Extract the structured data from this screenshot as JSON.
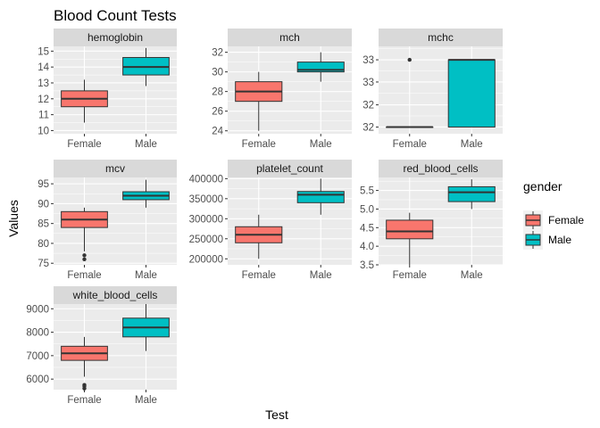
{
  "chart_data": {
    "type": "boxplot",
    "title": "Blood Count Tests",
    "xlabel": "Test",
    "ylabel": "Values",
    "categories": [
      "Female",
      "Male"
    ],
    "legend": {
      "title": "gender",
      "placement": "right",
      "items": [
        {
          "label": "Female",
          "color": "#F8766D"
        },
        {
          "label": "Male",
          "color": "#00BFC4"
        }
      ]
    },
    "grid": true,
    "panels": [
      {
        "name": "hemoglobin",
        "ylim": [
          9.8,
          15.3
        ],
        "yticks": [
          10,
          11,
          12,
          13,
          14,
          15
        ],
        "ytick_labels": [
          "10",
          "11",
          "12",
          "13",
          "14",
          "15"
        ],
        "boxes": [
          {
            "group": "Female",
            "min": 10.5,
            "q1": 11.5,
            "median": 12.0,
            "q3": 12.5,
            "max": 13.2,
            "outliers": []
          },
          {
            "group": "Male",
            "min": 12.8,
            "q1": 13.5,
            "median": 14.0,
            "q3": 14.6,
            "max": 15.2,
            "outliers": []
          }
        ]
      },
      {
        "name": "mch",
        "ylim": [
          23.7,
          32.6
        ],
        "yticks": [
          24,
          26,
          28,
          30,
          32
        ],
        "ytick_labels": [
          "24",
          "26",
          "28",
          "30",
          "32"
        ],
        "boxes": [
          {
            "group": "Female",
            "min": 24.0,
            "q1": 27.0,
            "median": 28.0,
            "q3": 29.0,
            "max": 30.0,
            "outliers": []
          },
          {
            "group": "Male",
            "min": 29.0,
            "q1": 30.0,
            "median": 30.2,
            "q3": 31.0,
            "max": 32.0,
            "outliers": []
          }
        ]
      },
      {
        "name": "mchc",
        "ylim": [
          31.9,
          33.2
        ],
        "yticks": [
          32,
          32.33,
          32.67,
          33
        ],
        "ytick_labels": [
          "32",
          "32",
          "33",
          "33"
        ],
        "boxes": [
          {
            "group": "Female",
            "min": 32.0,
            "q1": 32.0,
            "median": 32.0,
            "q3": 32.0,
            "max": 32.0,
            "outliers": [
              33.0
            ]
          },
          {
            "group": "Male",
            "min": 32.0,
            "q1": 32.0,
            "median": 33.0,
            "q3": 33.0,
            "max": 33.0,
            "outliers": []
          }
        ]
      },
      {
        "name": "mcv",
        "ylim": [
          74.6,
          96.6
        ],
        "yticks": [
          75,
          80,
          85,
          90,
          95
        ],
        "ytick_labels": [
          "75",
          "80",
          "85",
          "90",
          "95"
        ],
        "boxes": [
          {
            "group": "Female",
            "min": 78.0,
            "q1": 84.0,
            "median": 86.0,
            "q3": 88.0,
            "max": 89.0,
            "outliers": [
              76.0,
              77.0
            ]
          },
          {
            "group": "Male",
            "min": 89.0,
            "q1": 91.0,
            "median": 92.0,
            "q3": 93.0,
            "max": 96.0,
            "outliers": []
          }
        ]
      },
      {
        "name": "platelet_count",
        "ylim": [
          185000,
          403000
        ],
        "yticks": [
          200000,
          250000,
          300000,
          350000,
          400000
        ],
        "ytick_labels": [
          "200000",
          "250000",
          "300000",
          "350000",
          "400000"
        ],
        "boxes": [
          {
            "group": "Female",
            "min": 200000,
            "q1": 240000,
            "median": 260000,
            "q3": 280000,
            "max": 310000,
            "outliers": []
          },
          {
            "group": "Male",
            "min": 310000,
            "q1": 340000,
            "median": 360000,
            "q3": 368000,
            "max": 400000,
            "outliers": []
          }
        ]
      },
      {
        "name": "red_blood_cells",
        "ylim": [
          3.5,
          5.85
        ],
        "yticks": [
          3.5,
          4.0,
          4.5,
          5.0,
          5.5
        ],
        "ytick_labels": [
          "3.5",
          "4.0",
          "4.5",
          "5.0",
          "5.5"
        ],
        "boxes": [
          {
            "group": "Female",
            "min": 3.5,
            "q1": 4.2,
            "median": 4.4,
            "q3": 4.7,
            "max": 4.9,
            "outliers": []
          },
          {
            "group": "Male",
            "min": 5.0,
            "q1": 5.2,
            "median": 5.45,
            "q3": 5.6,
            "max": 5.8,
            "outliers": []
          }
        ]
      },
      {
        "name": "white_blood_cells",
        "ylim": [
          5550,
          9200
        ],
        "yticks": [
          6000,
          7000,
          8000,
          9000
        ],
        "ytick_labels": [
          "6000",
          "7000",
          "8000",
          "9000"
        ],
        "boxes": [
          {
            "group": "Female",
            "min": 6100,
            "q1": 6800,
            "median": 7100,
            "q3": 7400,
            "max": 7800,
            "outliers": [
              5600,
              5700,
              5750
            ]
          },
          {
            "group": "Male",
            "min": 7200,
            "q1": 7800,
            "median": 8200,
            "q3": 8600,
            "max": 9200,
            "outliers": []
          }
        ]
      }
    ]
  }
}
